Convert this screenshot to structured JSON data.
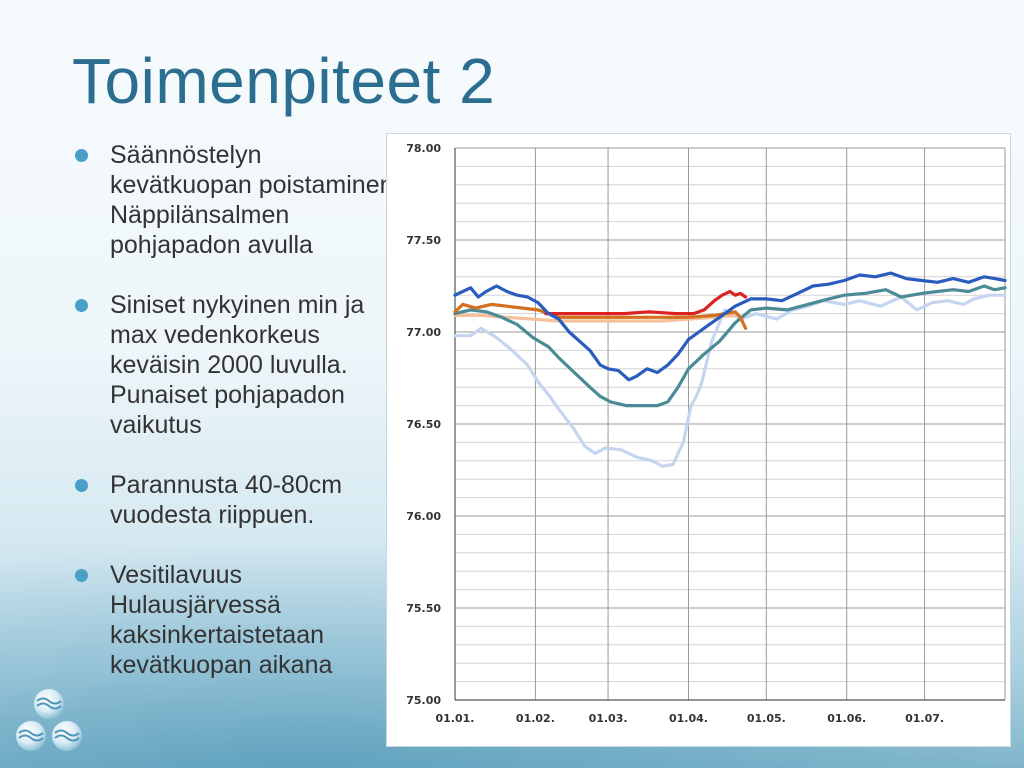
{
  "slide": {
    "title": "Toimenpiteet 2",
    "bullets": [
      "Säännöstelyn kevätkuopan poistaminen Näppilänsalmen pohjapadon avulla",
      "Siniset nykyinen min ja max vedenkorkeus keväisin 2000 luvulla. Punaiset pohjapadon vaikutus",
      "Parannusta 40-80cm vuodesta riippuen.",
      "Vesitilavuus Hulausjärvessä kaksinkertaistetaan kevätkuopan aikana"
    ],
    "logo": "water-drops-logo"
  },
  "chart_data": {
    "type": "line",
    "title": "",
    "xlabel": "",
    "ylabel": "",
    "xlim_days": [
      0,
      212
    ],
    "ylim": [
      75.0,
      78.0
    ],
    "y_ticks": [
      "78.00",
      "77.50",
      "77.00",
      "76.50",
      "76.00",
      "75.50",
      "75.00"
    ],
    "y_tick_values": [
      78.0,
      77.5,
      77.0,
      76.5,
      76.0,
      75.5,
      75.0
    ],
    "x_ticks": [
      "01.01.",
      "01.02.",
      "01.03.",
      "01.04.",
      "01.05.",
      "01.06.",
      "01.07."
    ],
    "x_tick_days": [
      0,
      31,
      59,
      90,
      120,
      151,
      181
    ],
    "grid": true,
    "series": [
      {
        "color": "#c5d5ef",
        "x": [
          0,
          6,
          10,
          16,
          22,
          28,
          32,
          36,
          40,
          46,
          50,
          54,
          58,
          64,
          70,
          76,
          80,
          84,
          88,
          91,
          93,
          95,
          99,
          104,
          110,
          116,
          124,
          130,
          136,
          142,
          150,
          156,
          164,
          172,
          178,
          184,
          190,
          196,
          200,
          206,
          212
        ],
        "values": [
          76.98,
          76.98,
          77.02,
          76.97,
          76.9,
          76.82,
          76.73,
          76.66,
          76.58,
          76.47,
          76.38,
          76.34,
          76.37,
          76.36,
          76.32,
          76.3,
          76.27,
          76.28,
          76.4,
          76.6,
          76.65,
          76.72,
          76.95,
          77.12,
          77.07,
          77.1,
          77.07,
          77.12,
          77.14,
          77.17,
          77.15,
          77.17,
          77.14,
          77.19,
          77.12,
          77.16,
          77.17,
          77.15,
          77.18,
          77.2,
          77.2
        ]
      },
      {
        "color": "#f5c09a",
        "x": [
          0,
          10,
          20,
          30,
          40,
          50,
          60,
          70,
          80,
          90,
          100,
          108
        ],
        "values": [
          77.09,
          77.09,
          77.08,
          77.07,
          77.06,
          77.06,
          77.06,
          77.06,
          77.06,
          77.07,
          77.08,
          77.09
        ]
      },
      {
        "color": "#4a8b96",
        "x": [
          0,
          6,
          12,
          18,
          24,
          30,
          36,
          40,
          46,
          52,
          56,
          60,
          66,
          72,
          78,
          82,
          86,
          90,
          96,
          102,
          108,
          114,
          120,
          128,
          136,
          144,
          150,
          158,
          166,
          172,
          180,
          186,
          192,
          198,
          204,
          208,
          212
        ],
        "values": [
          77.1,
          77.12,
          77.11,
          77.08,
          77.04,
          76.97,
          76.92,
          76.86,
          76.78,
          76.7,
          76.65,
          76.62,
          76.6,
          76.6,
          76.6,
          76.62,
          76.7,
          76.8,
          76.88,
          76.95,
          77.05,
          77.12,
          77.13,
          77.12,
          77.15,
          77.18,
          77.2,
          77.21,
          77.23,
          77.19,
          77.21,
          77.22,
          77.23,
          77.22,
          77.25,
          77.23,
          77.24
        ]
      },
      {
        "color": "#d2701f",
        "x": [
          0,
          3,
          8,
          14,
          20,
          26,
          32,
          36,
          40,
          44,
          50,
          60,
          70,
          80,
          90,
          100,
          108,
          110,
          112
        ],
        "values": [
          77.11,
          77.15,
          77.13,
          77.15,
          77.14,
          77.13,
          77.12,
          77.1,
          77.08,
          77.08,
          77.08,
          77.08,
          77.08,
          77.08,
          77.08,
          77.09,
          77.11,
          77.08,
          77.02
        ]
      },
      {
        "color": "#dd2222",
        "x": [
          35,
          45,
          55,
          65,
          75,
          85,
          92,
          96,
          100,
          103,
          106,
          108,
          110,
          112
        ],
        "values": [
          77.1,
          77.1,
          77.1,
          77.1,
          77.11,
          77.1,
          77.1,
          77.12,
          77.17,
          77.2,
          77.22,
          77.2,
          77.21,
          77.19
        ]
      },
      {
        "color": "#2a5bbf",
        "x": [
          0,
          3,
          6,
          9,
          12,
          16,
          20,
          24,
          28,
          32,
          36,
          40,
          44,
          48,
          52,
          56,
          59,
          63,
          67,
          70,
          74,
          78,
          82,
          86,
          90,
          94,
          98,
          102,
          108,
          114,
          120,
          126,
          132,
          138,
          144,
          150,
          156,
          162,
          168,
          174,
          180,
          186,
          192,
          198,
          204,
          208,
          212
        ],
        "values": [
          77.2,
          77.22,
          77.24,
          77.19,
          77.22,
          77.25,
          77.22,
          77.2,
          77.19,
          77.16,
          77.1,
          77.07,
          77.0,
          76.95,
          76.9,
          76.82,
          76.8,
          76.79,
          76.74,
          76.76,
          76.8,
          76.78,
          76.82,
          76.88,
          76.96,
          77.0,
          77.04,
          77.08,
          77.14,
          77.18,
          77.18,
          77.17,
          77.21,
          77.25,
          77.26,
          77.28,
          77.31,
          77.3,
          77.32,
          77.29,
          77.28,
          77.27,
          77.29,
          77.27,
          77.3,
          77.29,
          77.28
        ]
      }
    ]
  }
}
